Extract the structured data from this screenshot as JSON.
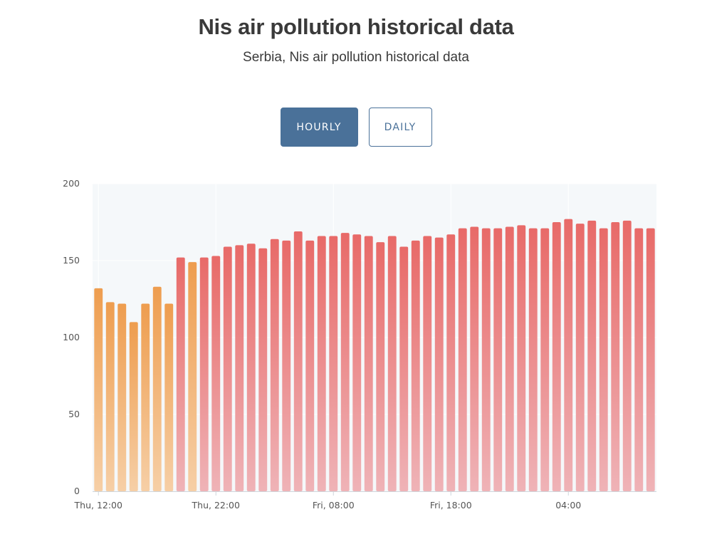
{
  "header": {
    "title": "Nis air pollution historical data",
    "subtitle": "Serbia, Nis air pollution historical data"
  },
  "toggle": {
    "hourly_label": "HOURLY",
    "daily_label": "DAILY",
    "selected": "hourly"
  },
  "colors": {
    "button_accent": "#4a7199",
    "plot_background": "#f5f8fa",
    "grid": "#ffffff",
    "orange_top": "#ee9d4f",
    "orange_bottom": "#f6cfa6",
    "red_top": "#e86a68",
    "red_bottom": "#efb3b7"
  },
  "chart_data": {
    "type": "bar",
    "title": "",
    "xlabel": "",
    "ylabel": "",
    "ylim": [
      0,
      200
    ],
    "yticks": [
      0,
      50,
      100,
      150,
      200
    ],
    "xtick_labels": [
      {
        "label": "Thu, 12:00",
        "bar_index": 0
      },
      {
        "label": "Thu, 22:00",
        "bar_index": 10
      },
      {
        "label": "Fri, 08:00",
        "bar_index": 20
      },
      {
        "label": "Fri, 18:00",
        "bar_index": 30
      },
      {
        "label": "04:00",
        "bar_index": 40
      }
    ],
    "categories": [
      "Thu 12:00",
      "Thu 13:00",
      "Thu 14:00",
      "Thu 15:00",
      "Thu 16:00",
      "Thu 17:00",
      "Thu 18:00",
      "Thu 19:00",
      "Thu 20:00",
      "Thu 21:00",
      "Thu 22:00",
      "Thu 23:00",
      "Fri 00:00",
      "Fri 01:00",
      "Fri 02:00",
      "Fri 03:00",
      "Fri 04:00",
      "Fri 05:00",
      "Fri 06:00",
      "Fri 07:00",
      "Fri 08:00",
      "Fri 09:00",
      "Fri 10:00",
      "Fri 11:00",
      "Fri 12:00",
      "Fri 13:00",
      "Fri 14:00",
      "Fri 15:00",
      "Fri 16:00",
      "Fri 17:00",
      "Fri 18:00",
      "Fri 19:00",
      "Fri 20:00",
      "Fri 21:00",
      "Fri 22:00",
      "Fri 23:00",
      "Sat 00:00",
      "Sat 01:00",
      "Sat 02:00",
      "Sat 03:00",
      "Sat 04:00",
      "Sat 05:00",
      "Sat 06:00",
      "Sat 07:00",
      "Sat 08:00",
      "Sat 09:00",
      "Sat 10:00",
      "Sat 11:00"
    ],
    "values": [
      132,
      123,
      122,
      110,
      122,
      133,
      122,
      152,
      149,
      152,
      153,
      159,
      160,
      161,
      158,
      164,
      163,
      169,
      163,
      166,
      166,
      168,
      167,
      166,
      162,
      166,
      159,
      163,
      166,
      165,
      167,
      171,
      172,
      171,
      171,
      172,
      173,
      171,
      171,
      175,
      177,
      174,
      176,
      171,
      175,
      176,
      171,
      171
    ],
    "color_threshold": 150
  }
}
